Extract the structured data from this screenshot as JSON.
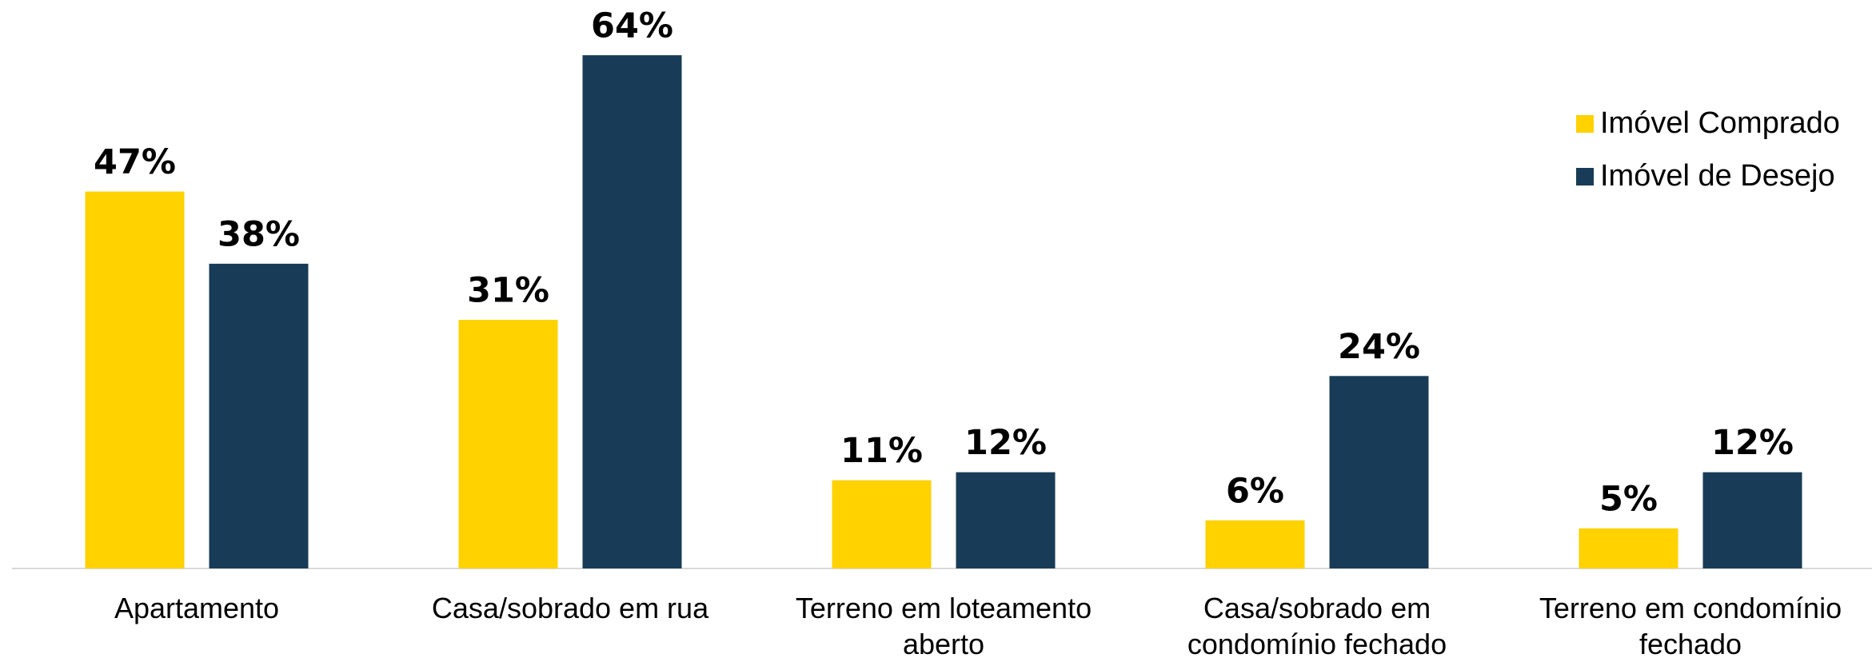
{
  "chart_data": {
    "type": "bar",
    "categories": [
      "Apartamento",
      "Casa/sobrado em rua",
      "Terreno em loteamento aberto",
      "Casa/sobrado em condomínio fechado",
      "Terreno em condomínio fechado"
    ],
    "series": [
      {
        "name": "Imóvel Comprado",
        "color": "#FFD200",
        "values": [
          47,
          31,
          11,
          6,
          5
        ],
        "value_labels": [
          "47%",
          "31%",
          "11%",
          "6%",
          "5%"
        ]
      },
      {
        "name": "Imóvel de Desejo",
        "color": "#183C57",
        "values": [
          38,
          64,
          12,
          24,
          12
        ],
        "value_labels": [
          "38%",
          "64%",
          "12%",
          "24%",
          "12%"
        ]
      }
    ],
    "legend": "right"
  }
}
